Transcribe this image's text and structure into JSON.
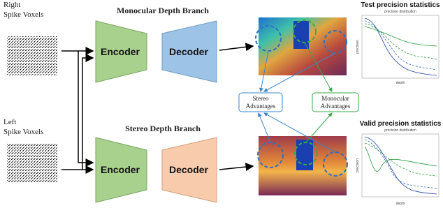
{
  "inputs": [
    {
      "line1": "Right",
      "line2": "Spike Voxels"
    },
    {
      "line1": "Left",
      "line2": "Spike Voxels"
    }
  ],
  "branches": [
    {
      "title": "Monocular Depth Branch",
      "encoder": "Encoder",
      "decoder": "Decoder"
    },
    {
      "title": "Stereo Depth Branch",
      "encoder": "Encoder",
      "decoder": "Decoder"
    }
  ],
  "advantages": [
    {
      "line1": "Stereo",
      "line2": "Advantages"
    },
    {
      "line1": "Monocular",
      "line2": "Advantages"
    }
  ],
  "plots": [
    {
      "title": "Test precision statistics",
      "subtitle": "precision distribution",
      "ylabel": "precision",
      "xlabel": "depth"
    },
    {
      "title": "Valid precision statistics",
      "subtitle": "precision distribution",
      "ylabel": "precision",
      "xlabel": "depth"
    }
  ]
}
